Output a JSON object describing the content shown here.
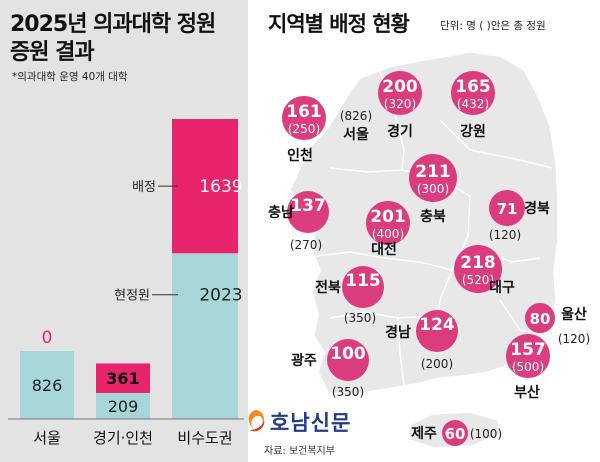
{
  "header": {
    "title_line1": "2025년 의과대학 정원",
    "title_line2": "증원 결과",
    "note": "*의과대학 운영 40개 대학"
  },
  "map_header": {
    "title": "지역별 배정 현황",
    "unit_note": "단위: 명 ( )안은 총 정원"
  },
  "colors": {
    "assigned": "#e8246a",
    "current": "#a6d6d8",
    "bubble": "#d93377",
    "map_fill": "#e8e8e8",
    "panel_bg": "#e3e3e3"
  },
  "chart_data": {
    "type": "bar",
    "stacked": true,
    "categories": [
      "서울",
      "경기·인천",
      "비수도권"
    ],
    "series": [
      {
        "name": "현정원",
        "values": [
          826,
          209,
          2023
        ]
      },
      {
        "name": "배정",
        "values": [
          0,
          361,
          1639
        ]
      }
    ],
    "annotations": {
      "assigned_label": "배정",
      "current_label": "현정원"
    },
    "value_labels": {
      "current": [
        "826",
        "209",
        "2023"
      ],
      "assigned": [
        "0",
        "361",
        "1639"
      ]
    }
  },
  "regions": [
    {
      "name": "인천",
      "assigned": "161",
      "total": "(250)"
    },
    {
      "name": "서울",
      "assigned": "",
      "total": "(826)"
    },
    {
      "name": "경기",
      "assigned": "200",
      "total": "(320)"
    },
    {
      "name": "강원",
      "assigned": "165",
      "total": "(432)"
    },
    {
      "name": "충북",
      "assigned": "211",
      "total": "(300)"
    },
    {
      "name": "충남",
      "assigned": "137",
      "total": "(270)"
    },
    {
      "name": "대전",
      "assigned": "201",
      "total": "(400)"
    },
    {
      "name": "경북",
      "assigned": "71",
      "total": "(120)"
    },
    {
      "name": "전북",
      "assigned": "115",
      "total": "(350)"
    },
    {
      "name": "대구",
      "assigned": "218",
      "total": "(520)"
    },
    {
      "name": "울산",
      "assigned": "80",
      "total": "(120)"
    },
    {
      "name": "경남",
      "assigned": "124",
      "total": "(200)"
    },
    {
      "name": "광주",
      "assigned": "100",
      "total": "(350)"
    },
    {
      "name": "부산",
      "assigned": "157",
      "total": "(500)"
    },
    {
      "name": "제주",
      "assigned": "60",
      "total": "(100)"
    }
  ],
  "footer": {
    "logo": "호남신문",
    "logo_icon": "swirl-logo-icon",
    "source": "자료: 보건복지부"
  }
}
